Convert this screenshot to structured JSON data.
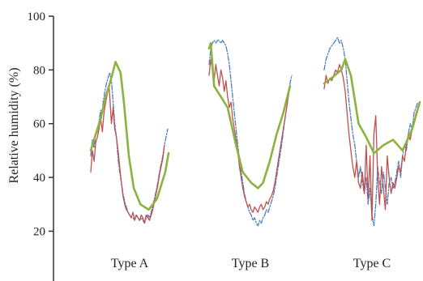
{
  "chart_data": {
    "type": "line",
    "title": "",
    "xlabel": "",
    "ylabel": "Relative humidity (%)",
    "ylim": [
      12,
      100
    ],
    "yticks": [
      20,
      40,
      60,
      80,
      100
    ],
    "grid": false,
    "categories": [
      "Type A",
      "Type B",
      "Type C"
    ],
    "colors": {
      "blue": "#4a7fc1",
      "red": "#c0504d",
      "green": "#8db33f",
      "axis": "#333333"
    },
    "panels": [
      {
        "name": "Type A",
        "series": [
          {
            "color": "blue",
            "style": "dashed",
            "x": [
              0,
              2,
              4,
              6,
              8,
              10,
              12,
              13,
              15,
              17,
              19,
              21,
              23,
              25,
              27,
              29,
              31,
              33,
              35,
              37,
              39,
              41,
              43,
              45,
              47,
              49,
              51,
              53,
              55,
              57,
              59,
              61,
              63,
              65,
              67,
              69,
              71,
              73,
              75,
              77,
              79,
              81,
              83,
              85,
              87,
              89,
              91,
              93
            ],
            "y": [
              48,
              54,
              51,
              56,
              57,
              61,
              65,
              62,
              68,
              72,
              75,
              77,
              79,
              76,
              68,
              60,
              55,
              47,
              42,
              38,
              34,
              31,
              29,
              27,
              26,
              25,
              25,
              24,
              26,
              25,
              24,
              25,
              24,
              23,
              25,
              26,
              25,
              27,
              30,
              32,
              35,
              38,
              42,
              45,
              48,
              52,
              55,
              58
            ]
          },
          {
            "color": "red",
            "style": "solid",
            "x": [
              0,
              2,
              4,
              6,
              8,
              10,
              12,
              14,
              16,
              18,
              20,
              22,
              23,
              25,
              27,
              29,
              31,
              33,
              35,
              37,
              39,
              41,
              43,
              45,
              47,
              49,
              51,
              53,
              55,
              57,
              59,
              61,
              63,
              65,
              67,
              69,
              71,
              73,
              75,
              77,
              79,
              81,
              83,
              85,
              87,
              89
            ],
            "y": [
              42,
              50,
              46,
              53,
              55,
              58,
              62,
              57,
              64,
              68,
              71,
              74,
              70,
              60,
              66,
              58,
              55,
              50,
              44,
              38,
              33,
              30,
              28,
              27,
              26,
              25,
              27,
              24,
              26,
              25,
              24,
              26,
              25,
              23,
              26,
              25,
              24,
              26,
              28,
              31,
              34,
              37,
              41,
              44,
              47,
              52
            ]
          },
          {
            "color": "green",
            "style": "solid",
            "x": [
              0,
              6,
              12,
              18,
              24,
              30,
              36,
              40,
              46,
              52,
              60,
              70,
              80,
              90,
              94
            ],
            "y": [
              50,
              56,
              62,
              70,
              76,
              83,
              79,
              68,
              48,
              36,
              30,
              28,
              32,
              42,
              49
            ]
          }
        ]
      },
      {
        "name": "Type B",
        "series": [
          {
            "color": "blue",
            "style": "dashed",
            "x": [
              0,
              2,
              4,
              6,
              8,
              10,
              12,
              14,
              16,
              18,
              20,
              22,
              24,
              26,
              28,
              30,
              32,
              34,
              36,
              38,
              40,
              42,
              44,
              46,
              48,
              50,
              52,
              54,
              56,
              58,
              60,
              62,
              64,
              66,
              68,
              70,
              72,
              74,
              76,
              78,
              80,
              82,
              84,
              86,
              88,
              90,
              92,
              94,
              96,
              98
            ],
            "y": [
              82,
              88,
              90,
              91,
              90,
              91,
              91,
              90,
              91,
              90,
              89,
              86,
              82,
              76,
              70,
              64,
              58,
              52,
              47,
              42,
              38,
              34,
              31,
              29,
              27,
              26,
              24,
              25,
              23,
              22,
              24,
              23,
              25,
              26,
              28,
              27,
              29,
              31,
              33,
              36,
              40,
              44,
              48,
              52,
              57,
              62,
              66,
              71,
              75,
              78
            ]
          },
          {
            "color": "red",
            "style": "solid",
            "x": [
              0,
              2,
              4,
              6,
              8,
              10,
              12,
              14,
              16,
              18,
              20,
              22,
              24,
              26,
              28,
              30,
              32,
              34,
              36,
              38,
              40,
              42,
              44,
              46,
              48,
              50,
              52,
              54,
              56,
              58,
              60,
              62,
              64,
              66,
              68,
              70,
              72,
              74,
              76,
              78,
              80,
              82,
              84,
              86,
              88,
              90,
              92,
              94,
              96
            ],
            "y": [
              78,
              84,
              80,
              76,
              82,
              78,
              74,
              80,
              77,
              72,
              76,
              70,
              66,
              68,
              62,
              58,
              54,
              50,
              44,
              40,
              36,
              33,
              31,
              29,
              30,
              28,
              27,
              29,
              28,
              27,
              29,
              30,
              28,
              29,
              31,
              30,
              32,
              33,
              35,
              38,
              42,
              46,
              50,
              54,
              58,
              62,
              66,
              70,
              74
            ]
          },
          {
            "color": "green",
            "style": "solid",
            "x": [
              0,
              2,
              6,
              14,
              22,
              32,
              40,
              50,
              58,
              64,
              72,
              80,
              88,
              96
            ],
            "y": [
              88,
              90,
              74,
              70,
              66,
              52,
              42,
              38,
              36,
              38,
              46,
              56,
              64,
              74
            ]
          }
        ]
      },
      {
        "name": "Type C",
        "series": [
          {
            "color": "blue",
            "style": "dashed",
            "x": [
              0,
              2,
              4,
              6,
              8,
              10,
              12,
              14,
              16,
              18,
              20,
              22,
              24,
              26,
              28,
              30,
              32,
              34,
              36,
              38,
              40,
              42,
              44,
              46,
              48,
              50,
              52,
              54,
              56,
              58,
              60,
              62,
              64,
              66,
              68,
              70,
              72,
              74,
              76,
              78,
              80,
              82,
              84,
              86,
              88,
              90,
              92,
              94,
              96,
              98
            ],
            "y": [
              80,
              84,
              86,
              88,
              89,
              90,
              91,
              92,
              90,
              91,
              88,
              84,
              76,
              68,
              62,
              56,
              52,
              46,
              40,
              44,
              38,
              34,
              40,
              30,
              36,
              26,
              22,
              30,
              44,
              38,
              34,
              42,
              36,
              30,
              38,
              40,
              36,
              38,
              42,
              46,
              40,
              48,
              52,
              50,
              56,
              60,
              58,
              64,
              66,
              68
            ]
          },
          {
            "color": "red",
            "style": "solid",
            "x": [
              0,
              2,
              4,
              6,
              8,
              10,
              12,
              14,
              16,
              18,
              20,
              22,
              24,
              26,
              28,
              30,
              32,
              34,
              36,
              38,
              40,
              42,
              44,
              46,
              48,
              50,
              52,
              54,
              56,
              58,
              60,
              62,
              64,
              66,
              68,
              70,
              72,
              74,
              76,
              78,
              80,
              82,
              84,
              86,
              88,
              90,
              92,
              94,
              96,
              98
            ],
            "y": [
              73,
              78,
              75,
              77,
              76,
              78,
              80,
              79,
              82,
              80,
              77,
              72,
              64,
              56,
              50,
              44,
              40,
              46,
              38,
              36,
              42,
              34,
              52,
              32,
              48,
              24,
              56,
              63,
              40,
              30,
              44,
              36,
              28,
              48,
              40,
              34,
              38,
              36,
              40,
              44,
              42,
              48,
              46,
              52,
              56,
              54,
              58,
              60,
              64,
              66
            ]
          },
          {
            "color": "green",
            "style": "solid",
            "x": [
              0,
              8,
              18,
              22,
              28,
              36,
              44,
              52,
              62,
              72,
              82,
              92,
              100
            ],
            "y": [
              75,
              77,
              80,
              84,
              78,
              60,
              55,
              49,
              52,
              54,
              50,
              58,
              68
            ]
          }
        ]
      }
    ]
  }
}
